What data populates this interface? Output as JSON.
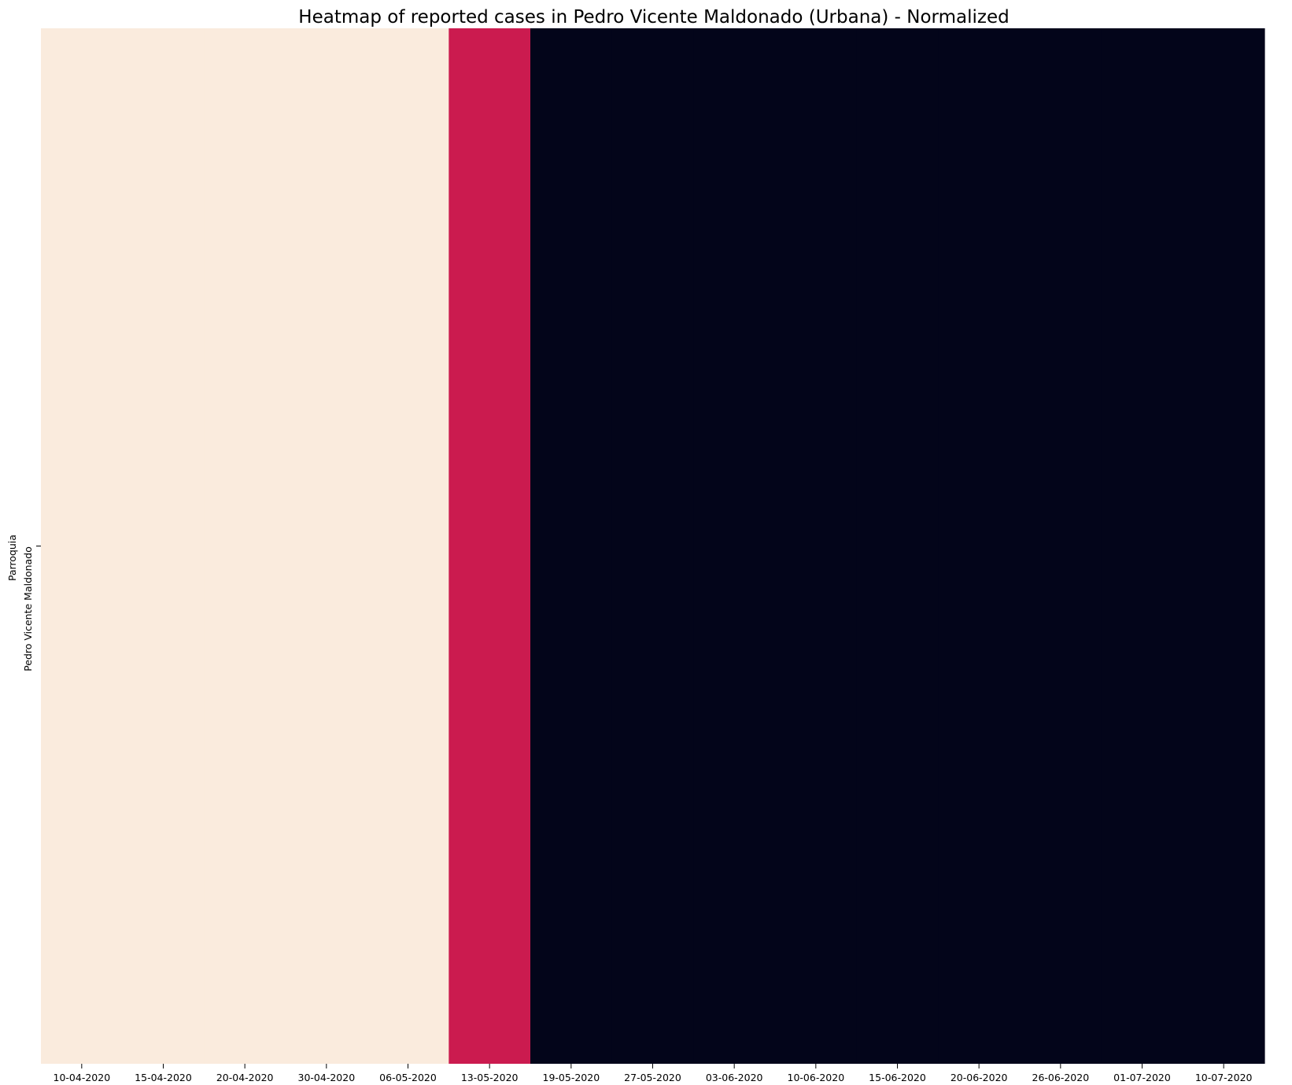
{
  "chart_data": {
    "type": "heatmap",
    "title": "Heatmap of reported cases in Pedro Vicente Maldonado (Urbana) - Normalized",
    "xlabel": "",
    "ylabel": "Parroquia",
    "rows": [
      "Pedro Vicente Maldonado"
    ],
    "x_tick_labels": [
      "10-04-2020",
      "15-04-2020",
      "20-04-2020",
      "30-04-2020",
      "06-05-2020",
      "13-05-2020",
      "19-05-2020",
      "27-05-2020",
      "03-06-2020",
      "10-06-2020",
      "15-06-2020",
      "20-06-2020",
      "26-06-2020",
      "01-07-2020",
      "10-07-2020"
    ],
    "columns": [
      "10-04-2020",
      "15-04-2020",
      "20-04-2020",
      "30-04-2020",
      "06-05-2020",
      "13-05-2020",
      "19-05-2020",
      "27-05-2020",
      "03-06-2020",
      "10-06-2020",
      "15-06-2020",
      "20-06-2020",
      "26-06-2020",
      "01-07-2020",
      "10-07-2020"
    ],
    "values": [
      [
        1,
        1,
        1,
        1,
        1,
        0.5,
        0,
        0,
        0,
        0,
        0,
        0,
        0,
        0,
        0
      ]
    ],
    "vmin": 0,
    "vmax": 1,
    "colorscale": "rocket",
    "colorbar": false,
    "grid": false,
    "colors": {
      "high": "#faebdd",
      "mid": "#cb1b4f",
      "low": "#03051a"
    }
  }
}
